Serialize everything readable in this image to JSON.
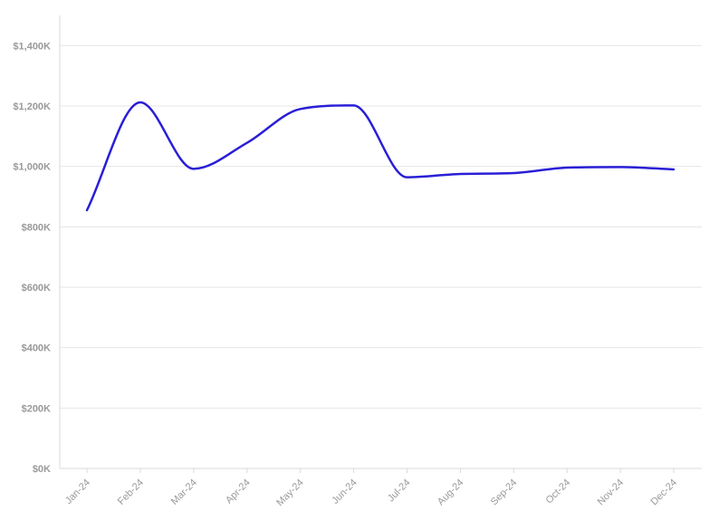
{
  "chart_data": {
    "type": "line",
    "title": "",
    "xlabel": "",
    "ylabel": "",
    "categories": [
      "Jan-24",
      "Feb-24",
      "Mar-24",
      "Apr-24",
      "May-24",
      "Jun-24",
      "Jul-24",
      "Aug-24",
      "Sep-24",
      "Oct-24",
      "Nov-24",
      "Dec-24"
    ],
    "series": [
      {
        "values": [
          855000,
          1212000,
          992000,
          1078000,
          1190000,
          1202000,
          964000,
          975000,
          978000,
          996000,
          998000,
          990000
        ],
        "color": "#2a1fd6"
      }
    ],
    "ylim": [
      0,
      1500000
    ],
    "yticks": [
      0,
      200000,
      400000,
      600000,
      800000,
      1000000,
      1200000,
      1400000
    ],
    "ytick_labels": [
      "$0K",
      "$200K",
      "$400K",
      "$600K",
      "$800K",
      "$1,000K",
      "$1,200K",
      "$1,400K"
    ],
    "grid": true,
    "legend": "none"
  }
}
